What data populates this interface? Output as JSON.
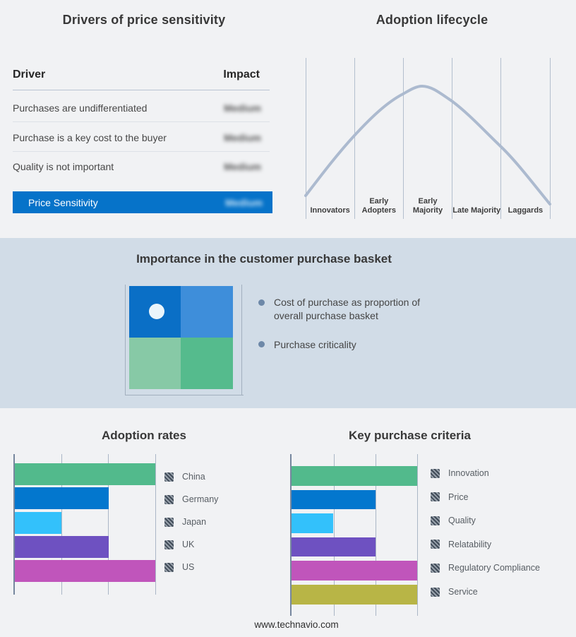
{
  "page": {
    "background": "#f1f2f4",
    "footer": "www.technavio.com"
  },
  "price_sensitivity_panel": {
    "title": "Drivers of price sensitivity",
    "columns": {
      "driver": "Driver",
      "impact": "Impact"
    },
    "rows": [
      {
        "driver": "Purchases are undifferentiated",
        "impact": "Medium",
        "impact_blurred": true
      },
      {
        "driver": "Purchase is a key cost to the buyer",
        "impact": "Medium",
        "impact_blurred": true
      },
      {
        "driver": "Quality is not important",
        "impact": "Medium",
        "impact_blurred": true
      }
    ],
    "summary_row": {
      "label": "Price Sensitivity",
      "impact": "Medium",
      "impact_blurred": true,
      "color": "#0673c9"
    }
  },
  "basket_panel": {
    "title": "Importance in the customer purchase basket",
    "background": "#d1dce7",
    "bullets": [
      "Cost of purchase as proportion of overall purchase basket",
      "Purchase criticality"
    ],
    "quadrant_colors": [
      "#0a6fc6",
      "#3e8eda",
      "#87c9a6",
      "#55bb8d"
    ]
  },
  "chart_data": [
    {
      "type": "bar",
      "orientation": "horizontal",
      "title": "Adoption rates",
      "categories": [
        "China",
        "Germany",
        "Japan",
        "UK",
        "US"
      ],
      "values": [
        3,
        2,
        1,
        2,
        3
      ],
      "colors": [
        "#52ba8c",
        "#0377ce",
        "#33c1fb",
        "#6e51c1",
        "#c055bb"
      ],
      "xlim": [
        0,
        3
      ],
      "grid": true,
      "legend_position": "right"
    },
    {
      "type": "bar",
      "orientation": "horizontal",
      "title": "Key purchase criteria",
      "categories": [
        "Innovation",
        "Price",
        "Quality",
        "Relatability",
        "Regulatory Compliance",
        "Service"
      ],
      "values": [
        3,
        2,
        1,
        2,
        3,
        3
      ],
      "colors": [
        "#52ba8c",
        "#0377ce",
        "#33c1fb",
        "#6e51c1",
        "#c055bb",
        "#b8b546"
      ],
      "xlim": [
        0,
        3
      ],
      "grid": true,
      "legend_position": "right"
    },
    {
      "type": "line",
      "title": "Adoption lifecycle",
      "x_categories": [
        "Innovators",
        "Early Adopters",
        "Early Majority",
        "Late Majority",
        "Laggards"
      ],
      "curve": "bell",
      "color": "#acbacf",
      "points_normalized": [
        [
          0,
          0.15
        ],
        [
          1,
          0.52
        ],
        [
          2,
          0.78
        ],
        [
          2.4,
          0.83
        ],
        [
          3,
          0.73
        ],
        [
          4,
          0.45
        ],
        [
          5,
          0.09
        ]
      ]
    }
  ]
}
